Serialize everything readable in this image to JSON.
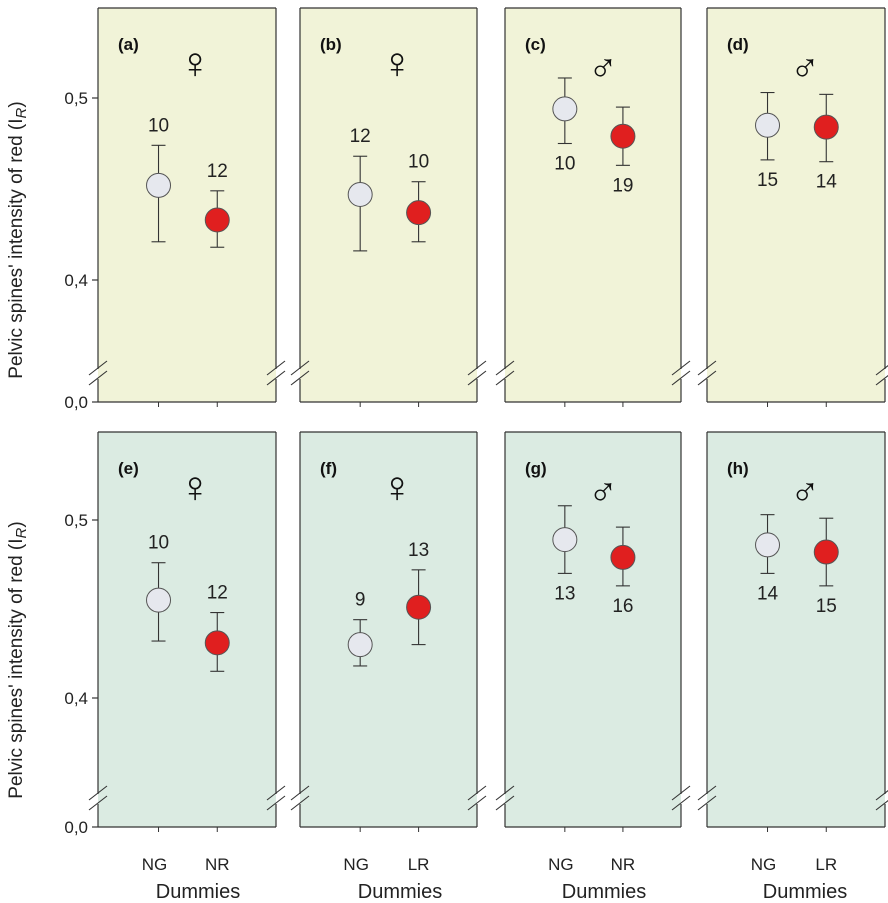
{
  "figure": {
    "ylabel": "Pelvic spines' intensity of red (I",
    "ylabel_sub": "R",
    "ylabel_close": ")",
    "xlabel": "Dummies",
    "ytick_labels": [
      "0,0",
      "0,4",
      "0,5"
    ],
    "ytick_values": [
      0.0,
      0.4,
      0.5
    ],
    "panel_bg_top": "#f1f3d8",
    "panel_bg_bottom": "#dbebe2",
    "grey_marker": "#e6e8ee",
    "red_marker": "#e01f1f"
  },
  "chart_data": [
    {
      "type": "scatter",
      "panel": "(a)",
      "sex": "♀",
      "categories": [
        "NG",
        "NR"
      ],
      "series": [
        {
          "values": [
            0.452,
            0.433
          ],
          "err_low": [
            0.421,
            0.418
          ],
          "err_high": [
            0.474,
            0.449
          ],
          "n": [
            "10",
            "12"
          ],
          "n_pos": [
            "above",
            "above"
          ]
        }
      ]
    },
    {
      "type": "scatter",
      "panel": "(b)",
      "sex": "♀",
      "categories": [
        "NG",
        "LR"
      ],
      "series": [
        {
          "values": [
            0.447,
            0.437
          ],
          "err_low": [
            0.416,
            0.421
          ],
          "err_high": [
            0.468,
            0.454
          ],
          "n": [
            "12",
            "10"
          ],
          "n_pos": [
            "above",
            "above"
          ]
        }
      ]
    },
    {
      "type": "scatter",
      "panel": "(c)",
      "sex": "♂",
      "categories": [
        "NG",
        "NR"
      ],
      "series": [
        {
          "values": [
            0.494,
            0.479
          ],
          "err_low": [
            0.475,
            0.463
          ],
          "err_high": [
            0.511,
            0.495
          ],
          "n": [
            "10",
            "19"
          ],
          "n_pos": [
            "below",
            "below"
          ]
        }
      ]
    },
    {
      "type": "scatter",
      "panel": "(d)",
      "sex": "♂",
      "categories": [
        "NG",
        "LR"
      ],
      "series": [
        {
          "values": [
            0.485,
            0.484
          ],
          "err_low": [
            0.466,
            0.465
          ],
          "err_high": [
            0.503,
            0.502
          ],
          "n": [
            "15",
            "14"
          ],
          "n_pos": [
            "below",
            "below"
          ]
        }
      ]
    },
    {
      "type": "scatter",
      "panel": "(e)",
      "sex": "♀",
      "categories": [
        "NG",
        "NR"
      ],
      "series": [
        {
          "values": [
            0.455,
            0.431
          ],
          "err_low": [
            0.432,
            0.415
          ],
          "err_high": [
            0.476,
            0.448
          ],
          "n": [
            "10",
            "12"
          ],
          "n_pos": [
            "above",
            "above"
          ]
        }
      ]
    },
    {
      "type": "scatter",
      "panel": "(f)",
      "sex": "♀",
      "categories": [
        "NG",
        "LR"
      ],
      "series": [
        {
          "values": [
            0.43,
            0.451
          ],
          "err_low": [
            0.418,
            0.43
          ],
          "err_high": [
            0.444,
            0.472
          ],
          "n": [
            "9",
            "13"
          ],
          "n_pos": [
            "above",
            "above"
          ]
        }
      ]
    },
    {
      "type": "scatter",
      "panel": "(g)",
      "sex": "♂",
      "categories": [
        "NG",
        "NR"
      ],
      "series": [
        {
          "values": [
            0.489,
            0.479
          ],
          "err_low": [
            0.47,
            0.463
          ],
          "err_high": [
            0.508,
            0.496
          ],
          "n": [
            "13",
            "16"
          ],
          "n_pos": [
            "below",
            "below"
          ]
        }
      ]
    },
    {
      "type": "scatter",
      "panel": "(h)",
      "sex": "♂",
      "categories": [
        "NG",
        "LR"
      ],
      "series": [
        {
          "values": [
            0.486,
            0.482
          ],
          "err_low": [
            0.47,
            0.463
          ],
          "err_high": [
            0.503,
            0.501
          ],
          "n": [
            "14",
            "15"
          ],
          "n_pos": [
            "below",
            "below"
          ]
        }
      ]
    }
  ]
}
